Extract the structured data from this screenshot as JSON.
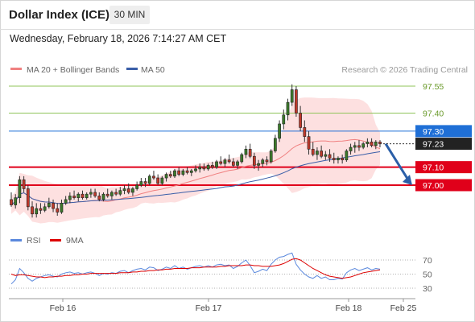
{
  "header": {
    "title": "Dollar Index (ICE)",
    "timeframe": "30 MIN",
    "datetime": "Wednesday, February 18, 2026 7:14:27 AM CET"
  },
  "legend": {
    "ma20_label": "MA 20 + Bollinger Bands",
    "ma50_label": "MA 50",
    "credit": "Research © 2026 Trading Central"
  },
  "colors": {
    "bollinger_fill": "#fde0e0",
    "ma20": "#f08080",
    "ma50": "#3a5ea8",
    "resistance_green": "#8fc45a",
    "pivot_blue": "#1f6fd6",
    "support_red": "#e0001a",
    "arrow_blue": "#2b5fa8",
    "rsi": "#5a88dd",
    "rsi_ma": "#dd0000"
  },
  "chart_data": [
    {
      "type": "candlestick",
      "ylim": [
        96.6,
        97.65
      ],
      "levels": [
        {
          "value": 97.55,
          "label": "97.55",
          "kind": "resistance"
        },
        {
          "value": 97.4,
          "label": "97.40",
          "kind": "resistance"
        },
        {
          "value": 97.3,
          "label": "97.30",
          "kind": "pivot"
        },
        {
          "value": 97.1,
          "label": "97.10",
          "kind": "support"
        },
        {
          "value": 97.0,
          "label": "97.00",
          "kind": "support"
        }
      ],
      "last_price": {
        "value": 97.23,
        "label": "97.23"
      },
      "x_ticks": [
        "Feb 16",
        "Feb 17",
        "Feb 18",
        "Feb 25"
      ],
      "forecast": {
        "from": 97.23,
        "to": 97.0
      },
      "candles": [
        [
          96.92,
          96.96,
          96.88,
          96.89
        ],
        [
          96.89,
          96.95,
          96.87,
          96.93
        ],
        [
          96.93,
          97.05,
          96.9,
          97.03
        ],
        [
          97.03,
          97.05,
          96.96,
          96.98
        ],
        [
          96.98,
          97.0,
          96.86,
          96.88
        ],
        [
          96.88,
          96.91,
          96.82,
          96.84
        ],
        [
          96.84,
          96.9,
          96.82,
          96.87
        ],
        [
          96.87,
          96.9,
          96.84,
          96.86
        ],
        [
          96.86,
          96.9,
          96.85,
          96.88
        ],
        [
          96.88,
          96.93,
          96.87,
          96.9
        ],
        [
          96.9,
          96.92,
          96.85,
          96.87
        ],
        [
          96.87,
          96.9,
          96.83,
          96.85
        ],
        [
          96.85,
          96.92,
          96.84,
          96.9
        ],
        [
          96.9,
          96.94,
          96.89,
          96.92
        ],
        [
          96.92,
          96.96,
          96.9,
          96.94
        ],
        [
          96.94,
          96.97,
          96.92,
          96.93
        ],
        [
          96.93,
          96.96,
          96.91,
          96.95
        ],
        [
          96.95,
          96.97,
          96.92,
          96.93
        ],
        [
          96.93,
          96.96,
          96.92,
          96.95
        ],
        [
          96.95,
          96.98,
          96.93,
          96.96
        ],
        [
          96.96,
          96.98,
          96.93,
          96.94
        ],
        [
          96.94,
          96.96,
          96.91,
          96.92
        ],
        [
          96.92,
          96.96,
          96.91,
          96.95
        ],
        [
          96.95,
          96.98,
          96.93,
          96.94
        ],
        [
          96.94,
          96.97,
          96.92,
          96.96
        ],
        [
          96.96,
          96.98,
          96.94,
          96.95
        ],
        [
          96.95,
          96.99,
          96.94,
          96.97
        ],
        [
          96.97,
          97.0,
          96.95,
          96.98
        ],
        [
          96.98,
          97.01,
          96.95,
          96.96
        ],
        [
          96.96,
          96.99,
          96.94,
          96.98
        ],
        [
          96.98,
          97.02,
          96.97,
          97.0
        ],
        [
          97.0,
          97.04,
          96.99,
          97.02
        ],
        [
          97.02,
          97.04,
          96.99,
          97.01
        ],
        [
          97.01,
          97.06,
          97.0,
          97.05
        ],
        [
          97.05,
          97.08,
          97.03,
          97.04
        ],
        [
          97.04,
          97.06,
          97.0,
          97.01
        ],
        [
          97.01,
          97.05,
          97.0,
          97.04
        ],
        [
          97.04,
          97.07,
          97.02,
          97.06
        ],
        [
          97.06,
          97.08,
          97.04,
          97.05
        ],
        [
          97.05,
          97.09,
          97.04,
          97.08
        ],
        [
          97.08,
          97.1,
          97.05,
          97.06
        ],
        [
          97.06,
          97.09,
          97.05,
          97.08
        ],
        [
          97.08,
          97.1,
          97.06,
          97.07
        ],
        [
          97.07,
          97.09,
          97.05,
          97.08
        ],
        [
          97.08,
          97.11,
          97.07,
          97.09
        ],
        [
          97.09,
          97.12,
          97.07,
          97.1
        ],
        [
          97.1,
          97.12,
          97.08,
          97.09
        ],
        [
          97.09,
          97.12,
          97.08,
          97.11
        ],
        [
          97.11,
          97.13,
          97.09,
          97.1
        ],
        [
          97.1,
          97.14,
          97.09,
          97.13
        ],
        [
          97.13,
          97.16,
          97.11,
          97.12
        ],
        [
          97.12,
          97.15,
          97.1,
          97.14
        ],
        [
          97.14,
          97.17,
          97.12,
          97.13
        ],
        [
          97.13,
          97.15,
          97.1,
          97.11
        ],
        [
          97.11,
          97.14,
          97.09,
          97.13
        ],
        [
          97.13,
          97.18,
          97.12,
          97.17
        ],
        [
          97.17,
          97.22,
          97.15,
          97.2
        ],
        [
          97.2,
          97.23,
          97.15,
          97.16
        ],
        [
          97.16,
          97.18,
          97.09,
          97.11
        ],
        [
          97.11,
          97.14,
          97.08,
          97.12
        ],
        [
          97.12,
          97.15,
          97.1,
          97.14
        ],
        [
          97.14,
          97.16,
          97.11,
          97.13
        ],
        [
          97.13,
          97.2,
          97.12,
          97.19
        ],
        [
          97.19,
          97.28,
          97.18,
          97.26
        ],
        [
          97.26,
          97.36,
          97.24,
          97.34
        ],
        [
          97.34,
          97.42,
          97.31,
          97.39
        ],
        [
          97.39,
          97.48,
          97.36,
          97.46
        ],
        [
          97.46,
          97.56,
          97.44,
          97.53
        ],
        [
          97.53,
          97.55,
          97.38,
          97.4
        ],
        [
          97.4,
          97.44,
          97.3,
          97.32
        ],
        [
          97.32,
          97.36,
          97.24,
          97.27
        ],
        [
          97.27,
          97.3,
          97.17,
          97.2
        ],
        [
          97.2,
          97.24,
          97.16,
          97.17
        ],
        [
          97.17,
          97.21,
          97.14,
          97.19
        ],
        [
          97.19,
          97.22,
          97.15,
          97.16
        ],
        [
          97.16,
          97.19,
          97.14,
          97.17
        ],
        [
          97.17,
          97.2,
          97.13,
          97.15
        ],
        [
          97.15,
          97.18,
          97.12,
          97.14
        ],
        [
          97.14,
          97.16,
          97.12,
          97.15
        ],
        [
          97.15,
          97.17,
          97.12,
          97.14
        ],
        [
          97.14,
          97.2,
          97.13,
          97.19
        ],
        [
          97.19,
          97.23,
          97.17,
          97.21
        ],
        [
          97.21,
          97.24,
          97.18,
          97.22
        ],
        [
          97.22,
          97.25,
          97.19,
          97.21
        ],
        [
          97.21,
          97.24,
          97.2,
          97.23
        ],
        [
          97.23,
          97.26,
          97.21,
          97.24
        ],
        [
          97.24,
          97.26,
          97.21,
          97.22
        ],
        [
          97.22,
          97.25,
          97.2,
          97.24
        ],
        [
          97.24,
          97.25,
          97.21,
          97.23
        ]
      ]
    },
    {
      "type": "line",
      "legend": [
        "RSI",
        "9MA"
      ],
      "yticks": [
        70,
        50,
        30
      ],
      "ylim": [
        20,
        80
      ],
      "series": [
        {
          "name": "RSI",
          "values": [
            36,
            42,
            58,
            52,
            44,
            40,
            44,
            46,
            48,
            49,
            47,
            46,
            50,
            52,
            53,
            51,
            52,
            50,
            52,
            53,
            51,
            48,
            51,
            50,
            52,
            51,
            54,
            55,
            52,
            55,
            57,
            58,
            56,
            60,
            59,
            55,
            57,
            60,
            58,
            62,
            58,
            60,
            57,
            59,
            61,
            62,
            60,
            62,
            60,
            63,
            64,
            62,
            63,
            58,
            61,
            66,
            70,
            62,
            52,
            54,
            57,
            55,
            64,
            70,
            74,
            75,
            78,
            80,
            64,
            56,
            50,
            46,
            44,
            48,
            44,
            46,
            42,
            42,
            44,
            43,
            52,
            56,
            58,
            55,
            57,
            59,
            56,
            58,
            57
          ]
        },
        {
          "name": "9MA",
          "values": [
            50,
            48,
            49,
            49,
            48,
            47,
            46,
            46,
            45,
            46,
            46,
            47,
            47,
            48,
            48,
            49,
            49,
            50,
            50,
            51,
            51,
            51,
            51,
            51,
            51,
            51,
            52,
            52,
            52,
            53,
            53,
            54,
            54,
            55,
            55,
            56,
            56,
            57,
            57,
            58,
            58,
            58,
            58,
            59,
            59,
            59,
            60,
            60,
            60,
            60,
            61,
            61,
            62,
            62,
            62,
            62,
            63,
            63,
            62,
            62,
            61,
            61,
            61,
            62,
            63,
            65,
            68,
            71,
            72,
            70,
            66,
            62,
            58,
            55,
            52,
            49,
            47,
            46,
            45,
            44,
            45,
            46,
            48,
            50,
            52,
            53,
            54,
            55,
            56
          ]
        }
      ]
    }
  ]
}
